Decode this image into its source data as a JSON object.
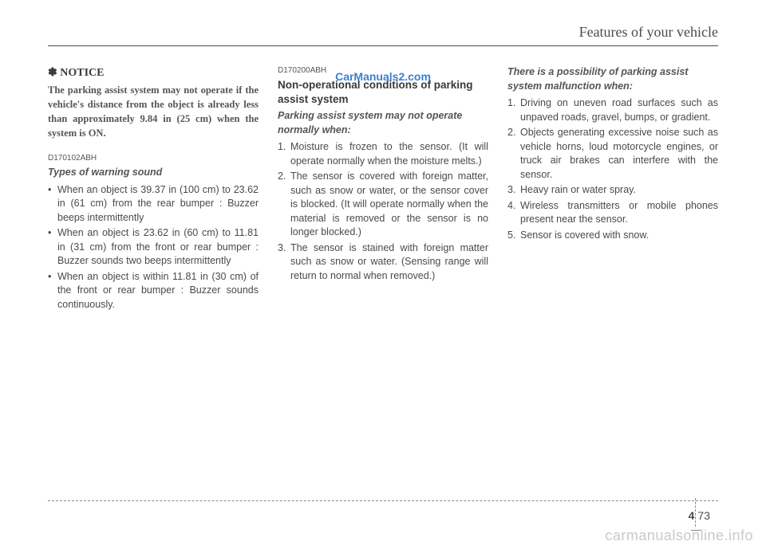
{
  "header": {
    "running_head": "Features of your vehicle"
  },
  "watermarks": {
    "top": "CarManuals2.com",
    "bottom": "carmanualsonline.info"
  },
  "col1": {
    "notice_head": "✽ NOTICE",
    "notice_body": "The parking assist system may not operate if the vehicle's distance from the object is already less than approximately 9.84 in (25 cm) when the system is ON.",
    "subcode": "D170102ABH",
    "subhead": "Types of warning sound",
    "bullets": [
      "When an object is 39.37 in (100 cm) to 23.62 in (61 cm) from the rear bumper : Buzzer beeps intermittently",
      "When an object is 23.62 in (60 cm) to 11.81 in (31 cm) from the front or rear bumper : Buzzer sounds two beeps intermittently",
      "When an object is within 11.81 in (30 cm) of the front or rear bumper : Buzzer sounds continuously."
    ]
  },
  "col2": {
    "subcode": "D170200ABH",
    "subhead_bold": "Non-operational conditions of parking assist system",
    "subhead_italic": "Parking assist system may not operate normally when:",
    "items": [
      "Moisture is frozen to the sensor. (It will operate normally when the moisture melts.)",
      "The sensor is covered with foreign matter, such as snow or water, or the sensor cover is blocked. (It will operate normally when the material is removed or the sensor is no longer blocked.)",
      "The sensor is stained with foreign matter such as snow or water. (Sensing range will return to normal when removed.)"
    ]
  },
  "col3": {
    "subhead_italic": "There is a possibility of parking assist system malfunction when:",
    "items": [
      "Driving on uneven road surfaces such as unpaved roads, gravel, bumps, or gradient.",
      "Objects generating excessive noise such as vehicle horns, loud motorcycle engines, or truck air brakes can interfere with the sensor.",
      "Heavy rain or water spray.",
      "Wireless transmitters or mobile phones present near the sensor.",
      "Sensor is covered with snow."
    ]
  },
  "footer": {
    "section": "4",
    "page": "73"
  }
}
